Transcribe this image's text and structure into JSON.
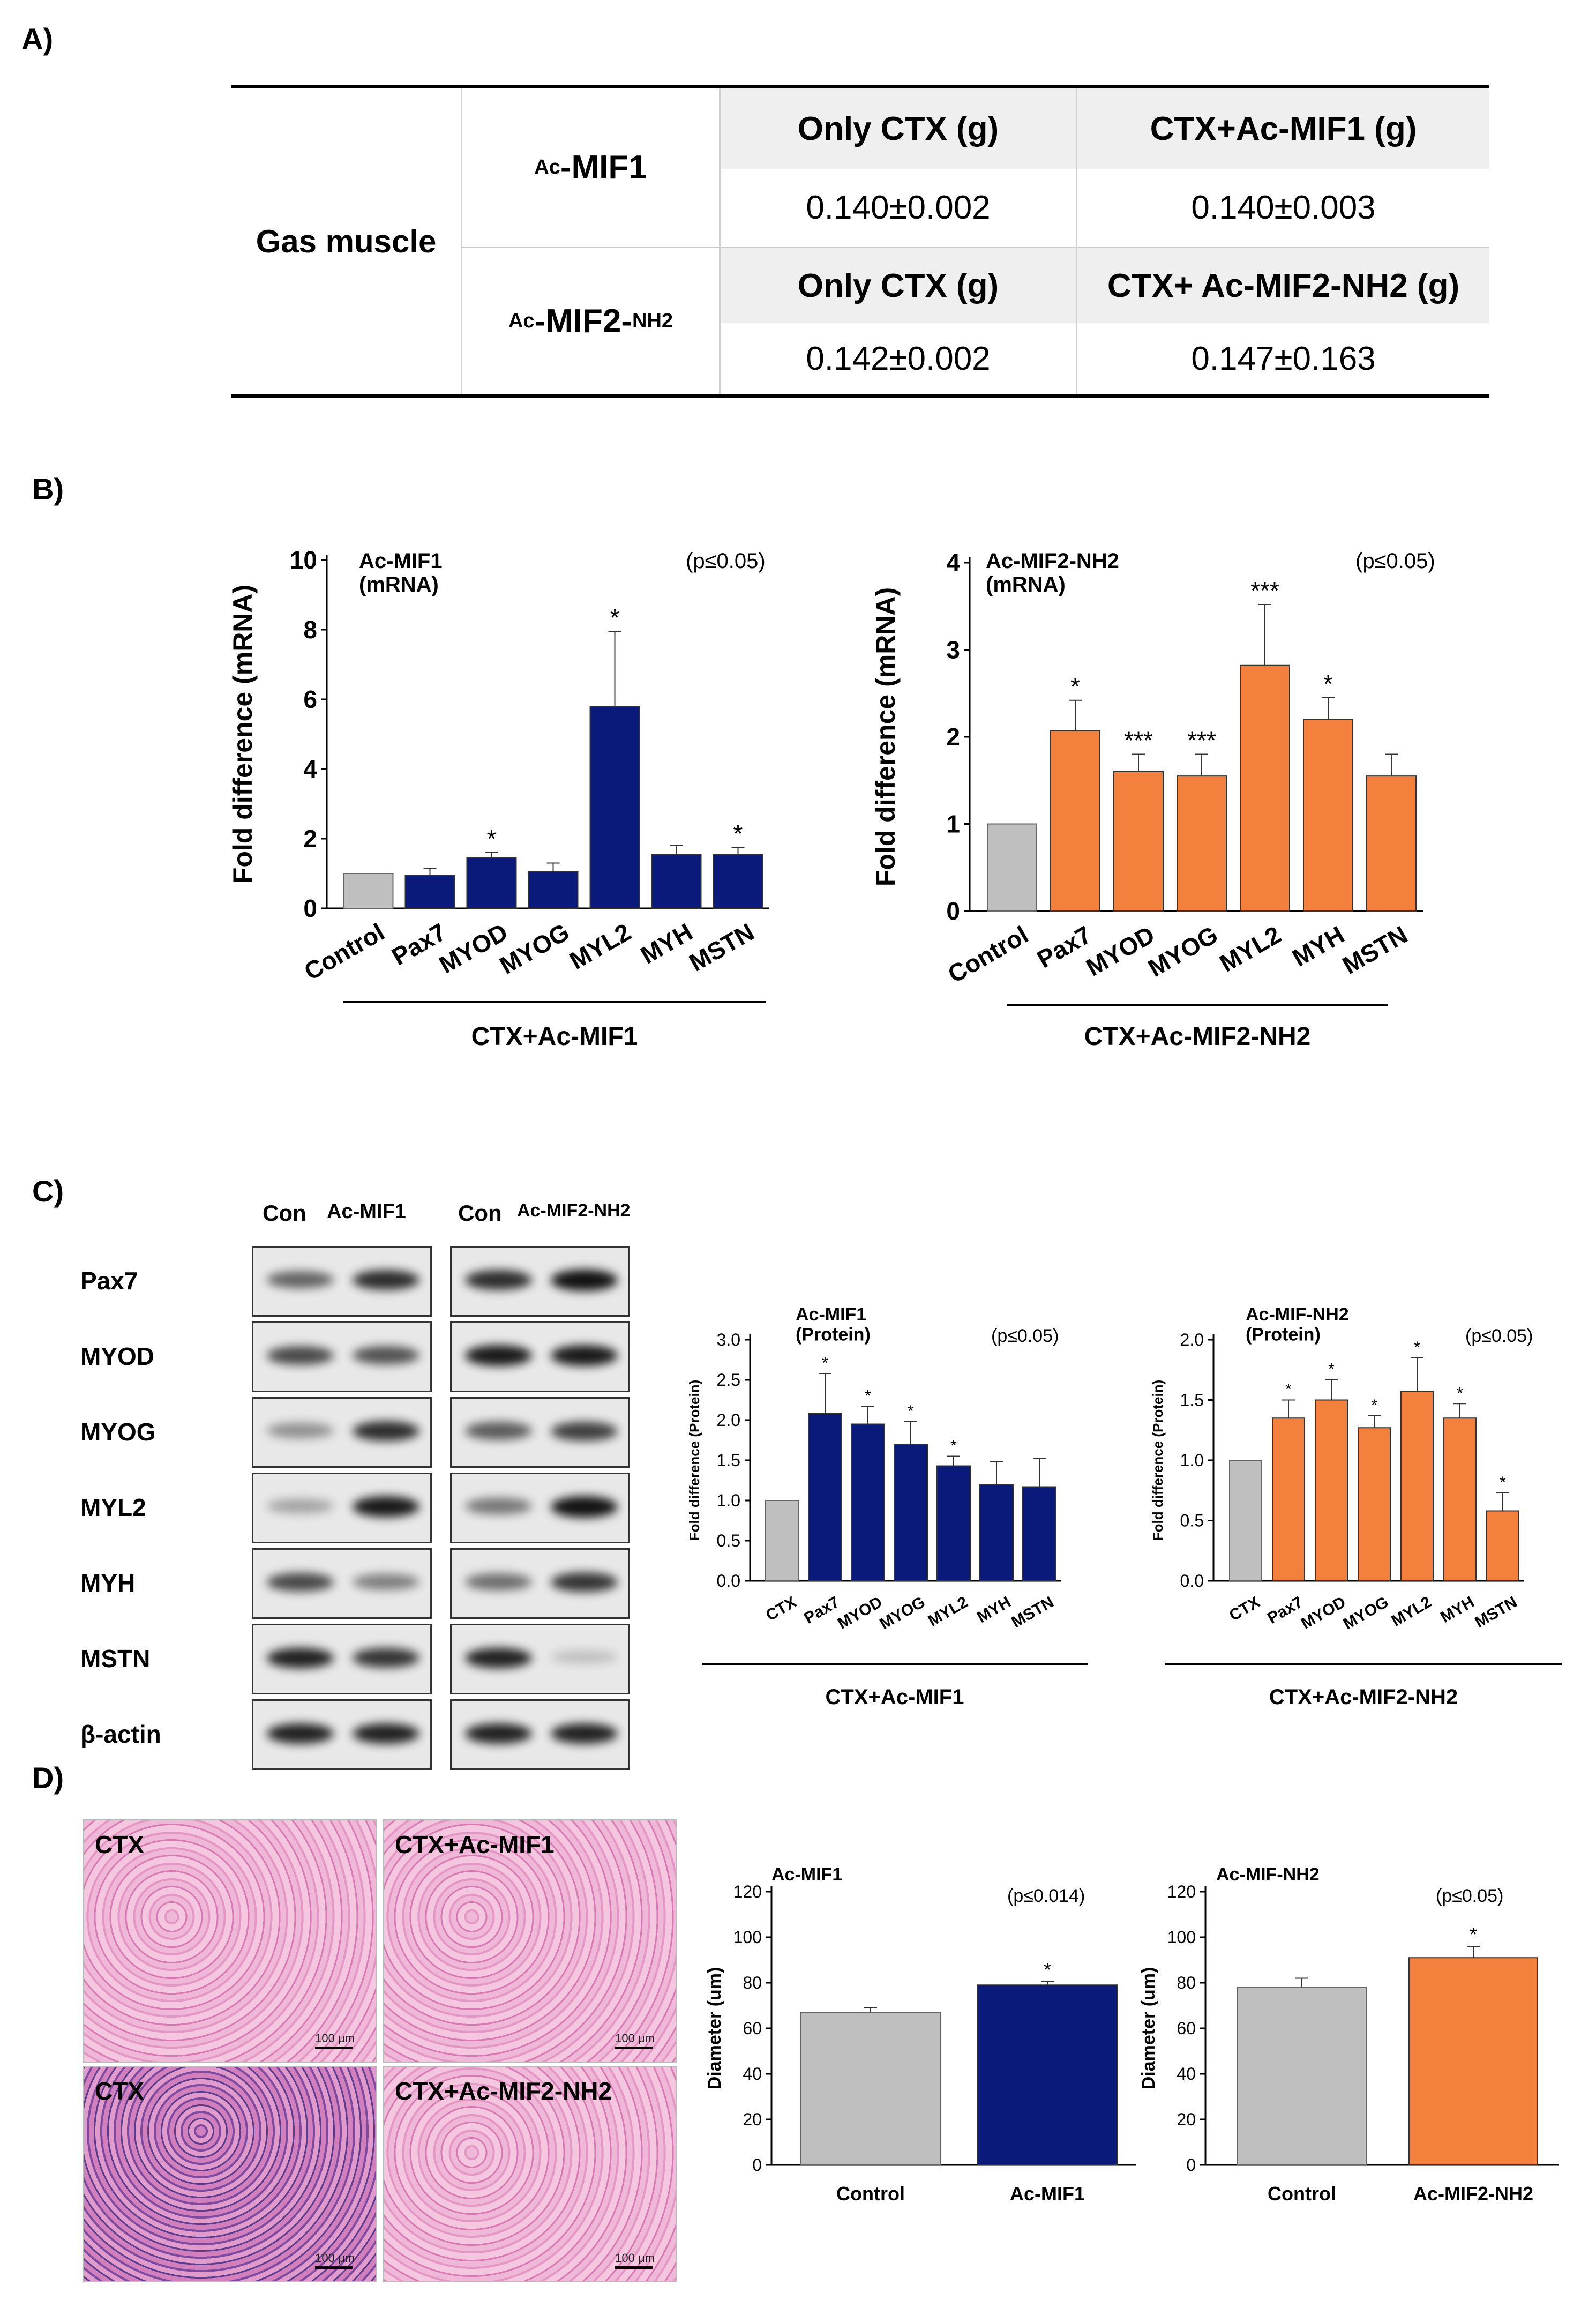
{
  "panel_labels": {
    "a": "A)",
    "b": "B)",
    "c": "C)",
    "d": "D)"
  },
  "table": {
    "row_label": "Gas muscle",
    "groups": [
      {
        "name": "Ac-MIF1",
        "name_prefix": "Ac",
        "name_main": "-MIF1",
        "header_left": "Only CTX (g)",
        "header_right": "CTX+Ac-MIF1 (g)",
        "value_left": "0.140±0.002",
        "value_right": "0.140±0.003"
      },
      {
        "name": "Ac-MIF2-NH2",
        "name_prefix": "Ac",
        "name_main": "-MIF2-",
        "name_suffix": "NH2",
        "header_left": "Only CTX (g)",
        "header_right": "CTX+ Ac-MIF2-NH2 (g)",
        "value_left": "0.142±0.002",
        "value_right": "0.147±0.163"
      }
    ]
  },
  "colors": {
    "control": "#bfbfbf",
    "mif1": "#0a1a7a",
    "mif2": "#f4803d"
  },
  "chart_data": [
    {
      "id": "b1",
      "type": "bar",
      "title": "Ac-MIF1",
      "subtitle": "(mRNA)",
      "pvalue": "(p≤0.05)",
      "ylabel": "Fold difference (mRNA)",
      "ylim": [
        0,
        10
      ],
      "yticks": [
        0,
        2,
        4,
        6,
        8,
        10
      ],
      "categories": [
        "Control",
        "Pax7",
        "MYOD",
        "MYOG",
        "MYL2",
        "MYH",
        "MSTN"
      ],
      "values": [
        1.0,
        0.95,
        1.45,
        1.05,
        5.8,
        1.55,
        1.55
      ],
      "errors": [
        0,
        0.2,
        0.15,
        0.25,
        2.15,
        0.25,
        0.2
      ],
      "sig": [
        "",
        "",
        "*",
        "",
        "*",
        "",
        "*"
      ],
      "group_label": "CTX+Ac-MIF1",
      "series_color": "mif1"
    },
    {
      "id": "b2",
      "type": "bar",
      "title": "Ac-MIF2-NH2",
      "subtitle": "(mRNA)",
      "pvalue": "(p≤0.05)",
      "ylabel": "Fold difference (mRNA)",
      "ylim": [
        0,
        4
      ],
      "yticks": [
        0,
        1,
        2,
        3,
        4
      ],
      "categories": [
        "Control",
        "Pax7",
        "MYOD",
        "MYOG",
        "MYL2",
        "MYH",
        "MSTN"
      ],
      "values": [
        1.0,
        2.07,
        1.6,
        1.55,
        2.82,
        2.2,
        1.55
      ],
      "errors": [
        0,
        0.35,
        0.2,
        0.25,
        0.7,
        0.25,
        0.25
      ],
      "sig": [
        "",
        "*",
        "***",
        "***",
        "***",
        "*",
        ""
      ],
      "group_label": "CTX+Ac-MIF2-NH2",
      "series_color": "mif2"
    },
    {
      "id": "c1",
      "type": "bar",
      "title": "Ac-MIF1",
      "subtitle": "(Protein)",
      "pvalue": "(p≤0.05)",
      "ylabel": "Fold difference (Protein)",
      "ylim": [
        0,
        3
      ],
      "yticks": [
        "0.0",
        "0.5",
        "1.0",
        "1.5",
        "2.0",
        "2.5",
        "3.0"
      ],
      "categories": [
        "CTX",
        "Pax7",
        "MYOD",
        "MYOG",
        "MYL2",
        "MYH",
        "MSTN"
      ],
      "values": [
        1.0,
        2.08,
        1.95,
        1.7,
        1.43,
        1.2,
        1.17
      ],
      "errors": [
        0,
        0.5,
        0.22,
        0.28,
        0.12,
        0.28,
        0.35
      ],
      "sig": [
        "",
        "*",
        "*",
        "*",
        "*",
        "",
        ""
      ],
      "group_label": "CTX+Ac-MIF1",
      "series_color": "mif1"
    },
    {
      "id": "c2",
      "type": "bar",
      "title": "Ac-MIF-NH2",
      "subtitle": "(Protein)",
      "pvalue": "(p≤0.05)",
      "ylabel": "Fold difference (Protein)",
      "ylim": [
        0,
        2
      ],
      "yticks": [
        "0.0",
        "0.5",
        "1.0",
        "1.5",
        "2.0"
      ],
      "categories": [
        "CTX",
        "Pax7",
        "MYOD",
        "MYOG",
        "MYL2",
        "MYH",
        "MSTN"
      ],
      "values": [
        1.0,
        1.35,
        1.5,
        1.27,
        1.57,
        1.35,
        0.58
      ],
      "errors": [
        0,
        0.15,
        0.17,
        0.1,
        0.28,
        0.12,
        0.15
      ],
      "sig": [
        "",
        "*",
        "*",
        "*",
        "*",
        "*",
        "*"
      ],
      "group_label": "CTX+Ac-MIF2-NH2",
      "series_color": "mif2"
    },
    {
      "id": "d1",
      "type": "bar",
      "title": "Ac-MIF1",
      "pvalue": "(p≤0.014)",
      "ylabel": "Diameter (um)",
      "ylim": [
        0,
        120
      ],
      "yticks": [
        0,
        20,
        40,
        60,
        80,
        100,
        120
      ],
      "categories": [
        "Control",
        "Ac-MIF1"
      ],
      "values": [
        67,
        79
      ],
      "errors": [
        2,
        1.5
      ],
      "sig": [
        "",
        "*"
      ],
      "series_color": "mif1"
    },
    {
      "id": "d2",
      "type": "bar",
      "title": "Ac-MIF-NH2",
      "pvalue": "(p≤0.05)",
      "ylabel": "Diameter (um)",
      "ylim": [
        0,
        120
      ],
      "yticks": [
        0,
        20,
        40,
        60,
        80,
        100,
        120
      ],
      "categories": [
        "Control",
        "Ac-MIF2-NH2"
      ],
      "values": [
        78,
        91
      ],
      "errors": [
        4,
        5
      ],
      "sig": [
        "",
        "*"
      ],
      "series_color": "mif2"
    }
  ],
  "blot": {
    "headers_left": [
      "Con",
      "Ac-MIF1"
    ],
    "headers_right": [
      "Con",
      "Ac-MIF2-NH2"
    ],
    "proteins": [
      "Pax7",
      "MYOD",
      "MYOG",
      "MYL2",
      "MYH",
      "MSTN",
      "β-actin"
    ]
  },
  "histology": {
    "labels": [
      "CTX",
      "CTX+Ac-MIF1",
      "CTX",
      "CTX+Ac-MIF2-NH2"
    ],
    "scale": "100 μm"
  }
}
